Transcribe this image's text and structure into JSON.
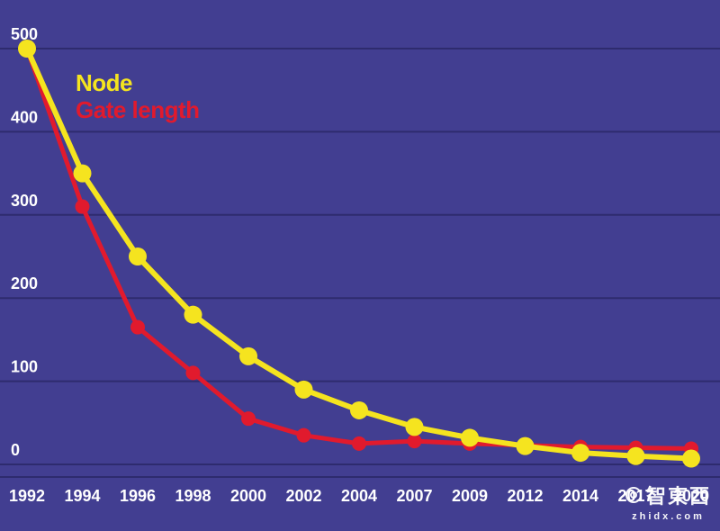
{
  "chart_data": {
    "type": "line",
    "title": "",
    "xlabel": "",
    "ylabel": "",
    "categories": [
      "1992",
      "1994",
      "1996",
      "1998",
      "2000",
      "2002",
      "2004",
      "2007",
      "2009",
      "2012",
      "2014",
      "2017",
      "2020"
    ],
    "series": [
      {
        "name": "Node",
        "color": "#f5e41f",
        "line_width": 6,
        "point_radius": 10,
        "values": [
          500,
          350,
          250,
          180,
          130,
          90,
          65,
          45,
          32,
          22,
          14,
          10,
          7
        ]
      },
      {
        "name": "Gate length",
        "color": "#e11a2d",
        "line_width": 5,
        "point_radius": 8,
        "values": [
          500,
          310,
          165,
          110,
          55,
          35,
          25,
          28,
          25,
          23,
          21,
          20,
          19
        ]
      }
    ],
    "ylim": [
      0,
      500
    ],
    "yticks": [
      0,
      100,
      200,
      300,
      400,
      500
    ],
    "grid": true,
    "legend_position": "top-left",
    "background": "#423e91",
    "gridline_color": "#2e2b6e",
    "label_color": "#ffffff"
  },
  "legend": {
    "node_label": "Node",
    "gate_length_label": "Gate length"
  },
  "watermark": {
    "brand": "智東西",
    "domain": "zhidx.com"
  }
}
